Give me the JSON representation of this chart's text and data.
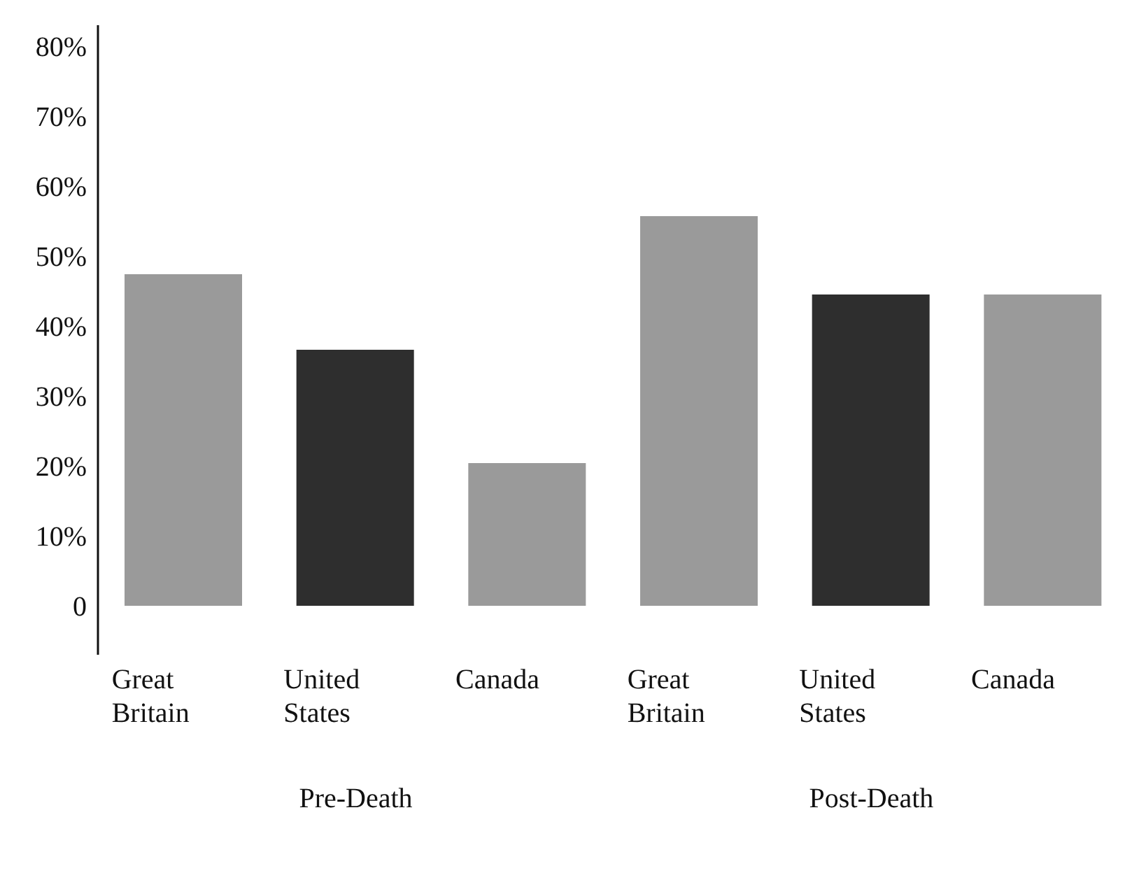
{
  "chart_data": {
    "type": "bar",
    "categories": [
      "Great Britain",
      "United States",
      "Canada",
      "Great Britain",
      "United States",
      "Canada"
    ],
    "values": [
      47.4,
      36.6,
      20.4,
      55.7,
      44.5,
      44.5
    ],
    "colors": [
      "#9a9a9a",
      "#2e2e2e",
      "#9a9a9a",
      "#9a9a9a",
      "#2e2e2e",
      "#9a9a9a"
    ],
    "ylim": [
      -7,
      83
    ],
    "yticks": [
      0,
      {
        "value": 10,
        "label": "10%"
      },
      {
        "value": 20,
        "label": "20%"
      },
      {
        "value": 30,
        "label": "30%"
      },
      {
        "value": 40,
        "label": "40%"
      },
      {
        "value": 50,
        "label": "50%"
      },
      {
        "value": 60,
        "label": "60%"
      },
      {
        "value": 70,
        "label": "70%"
      },
      {
        "value": 80,
        "label": "80%"
      }
    ],
    "annotations": [
      "Pre-Death",
      "Post-Death"
    ],
    "grid": false,
    "legend": false
  }
}
